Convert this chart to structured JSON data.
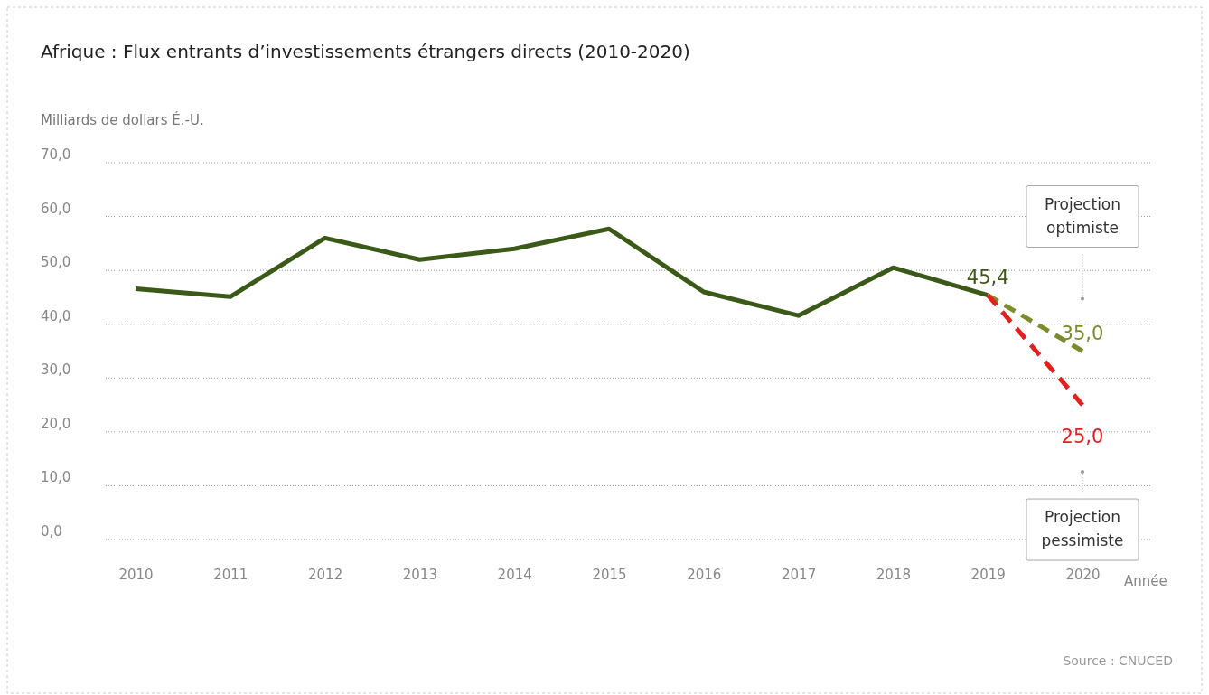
{
  "chart_data": {
    "type": "line",
    "title": "Afrique : Flux entrants d’investissements étrangers directs (2010-2020)",
    "ylabel": "Milliards de dollars É.-U.",
    "xlabel": "Année",
    "categories": [
      "2010",
      "2011",
      "2012",
      "2013",
      "2014",
      "2015",
      "2016",
      "2017",
      "2018",
      "2019",
      "2020"
    ],
    "series": [
      {
        "color": "#3b5a17",
        "line_style": "solid",
        "values": [
          46.6,
          45.1,
          56.0,
          52.0,
          54.0,
          57.7,
          46.0,
          41.6,
          50.5,
          45.4,
          null
        ],
        "value_labels": [
          null,
          null,
          null,
          null,
          null,
          null,
          null,
          null,
          null,
          "45,4",
          null
        ]
      },
      {
        "color": "#7d8b2b",
        "line_style": "dashed",
        "values": [
          null,
          null,
          null,
          null,
          null,
          null,
          null,
          null,
          null,
          45.4,
          35.0
        ],
        "value_labels": [
          null,
          null,
          null,
          null,
          null,
          null,
          null,
          null,
          null,
          null,
          "35,0"
        ]
      },
      {
        "color": "#e3201f",
        "line_style": "dashed",
        "values": [
          null,
          null,
          null,
          null,
          null,
          null,
          null,
          null,
          null,
          45.4,
          25.0
        ],
        "value_labels": [
          null,
          null,
          null,
          null,
          null,
          null,
          null,
          null,
          null,
          null,
          "25,0"
        ]
      }
    ],
    "ylim": [
      0,
      70
    ],
    "yticks": [
      {
        "value": 0,
        "label": "0,0"
      },
      {
        "value": 10,
        "label": "10,0"
      },
      {
        "value": 20,
        "label": "20,0"
      },
      {
        "value": 30,
        "label": "30,0"
      },
      {
        "value": 40,
        "label": "40,0"
      },
      {
        "value": 50,
        "label": "50,0"
      },
      {
        "value": 60,
        "label": "60,0"
      },
      {
        "value": 70,
        "label": "70,0"
      }
    ],
    "grid": "y",
    "marker": "none",
    "annotations": [
      "Projection optimiste",
      "Projection pessimiste",
      "Source : CNUCED"
    ]
  }
}
